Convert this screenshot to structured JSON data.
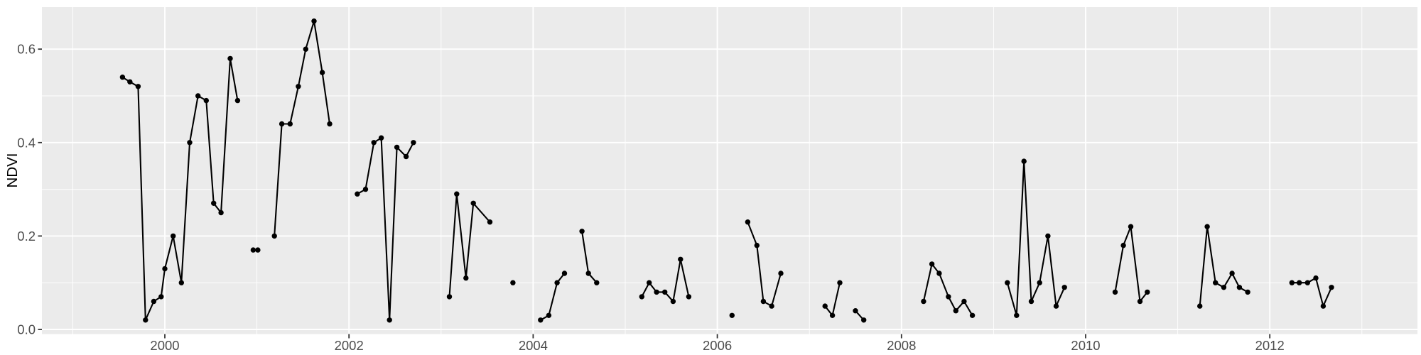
{
  "figure": {
    "description": "NDVI time series line-and-point plot with gaps, ggplot2 grey theme",
    "colors": {
      "figure_background": "#ffffff",
      "panel_background": "#ebebeb",
      "gridline": "#ffffff",
      "series": "#000000",
      "axis_text": "#4d4d4d",
      "axis_title": "#000000",
      "tick_mark": "#333333"
    }
  },
  "chart_data": {
    "type": "line",
    "title": "",
    "xlabel": "",
    "ylabel": "NDVI",
    "legend": "none",
    "grid": {
      "major": true,
      "minor": true
    },
    "x_axis": {
      "tick_labels": [
        "2000",
        "2002",
        "2004",
        "2006",
        "2008",
        "2010",
        "2012"
      ],
      "tick_values": [
        2000,
        2002,
        2004,
        2006,
        2008,
        2010,
        2012
      ],
      "minor_tick_values": [
        1999,
        2001,
        2003,
        2005,
        2007,
        2009,
        2011,
        2013
      ],
      "range": [
        1998.67,
        2013.62
      ]
    },
    "y_axis": {
      "tick_labels": [
        "0.0",
        "0.2",
        "0.4",
        "0.6"
      ],
      "tick_values": [
        0,
        0.2,
        0.4,
        0.6
      ],
      "minor_tick_values": [
        0.1,
        0.3,
        0.5
      ],
      "range": [
        -0.01,
        0.69
      ]
    },
    "series": [
      {
        "name": "NDVI",
        "point_marker": "filled-circle",
        "segments": [
          [
            [
              1999.54,
              0.54
            ],
            [
              1999.62,
              0.53
            ],
            [
              1999.71,
              0.52
            ],
            [
              1999.79,
              0.02
            ],
            [
              1999.88,
              0.06
            ],
            [
              1999.96,
              0.07
            ],
            [
              2000.0,
              0.13
            ],
            [
              2000.09,
              0.2
            ],
            [
              2000.18,
              0.1
            ],
            [
              2000.27,
              0.4
            ],
            [
              2000.36,
              0.5
            ],
            [
              2000.45,
              0.49
            ],
            [
              2000.53,
              0.27
            ],
            [
              2000.61,
              0.25
            ],
            [
              2000.71,
              0.58
            ],
            [
              2000.79,
              0.49
            ]
          ],
          [
            [
              2000.96,
              0.17
            ],
            [
              2001.01,
              0.17
            ]
          ],
          [
            [
              2001.19,
              0.2
            ],
            [
              2001.27,
              0.44
            ],
            [
              2001.36,
              0.44
            ],
            [
              2001.45,
              0.52
            ],
            [
              2001.53,
              0.6
            ],
            [
              2001.62,
              0.66
            ],
            [
              2001.71,
              0.55
            ],
            [
              2001.79,
              0.44
            ]
          ],
          [
            [
              2002.09,
              0.29
            ],
            [
              2002.18,
              0.3
            ],
            [
              2002.27,
              0.4
            ],
            [
              2002.35,
              0.41
            ],
            [
              2002.44,
              0.02
            ],
            [
              2002.52,
              0.39
            ],
            [
              2002.62,
              0.37
            ],
            [
              2002.7,
              0.4
            ]
          ],
          [
            [
              2003.09,
              0.07
            ],
            [
              2003.17,
              0.29
            ],
            [
              2003.27,
              0.11
            ],
            [
              2003.35,
              0.27
            ],
            [
              2003.53,
              0.23
            ]
          ],
          [
            [
              2003.78,
              0.1
            ]
          ],
          [
            [
              2004.08,
              0.02
            ],
            [
              2004.17,
              0.03
            ],
            [
              2004.26,
              0.1
            ],
            [
              2004.34,
              0.12
            ]
          ],
          [
            [
              2004.53,
              0.21
            ],
            [
              2004.6,
              0.12
            ],
            [
              2004.69,
              0.1
            ]
          ],
          [
            [
              2005.18,
              0.07
            ],
            [
              2005.26,
              0.1
            ],
            [
              2005.34,
              0.08
            ],
            [
              2005.43,
              0.08
            ],
            [
              2005.52,
              0.06
            ],
            [
              2005.6,
              0.15
            ],
            [
              2005.69,
              0.07
            ]
          ],
          [
            [
              2006.16,
              0.03
            ]
          ],
          [
            [
              2006.33,
              0.23
            ],
            [
              2006.43,
              0.18
            ],
            [
              2006.5,
              0.06
            ],
            [
              2006.59,
              0.05
            ],
            [
              2006.69,
              0.12
            ]
          ],
          [
            [
              2007.17,
              0.05
            ],
            [
              2007.25,
              0.03
            ],
            [
              2007.33,
              0.1
            ]
          ],
          [
            [
              2007.5,
              0.04
            ],
            [
              2007.59,
              0.02
            ]
          ],
          [
            [
              2008.24,
              0.06
            ],
            [
              2008.33,
              0.14
            ],
            [
              2008.41,
              0.12
            ],
            [
              2008.51,
              0.07
            ],
            [
              2008.59,
              0.04
            ],
            [
              2008.68,
              0.06
            ],
            [
              2008.77,
              0.03
            ]
          ],
          [
            [
              2009.15,
              0.1
            ],
            [
              2009.25,
              0.03
            ],
            [
              2009.33,
              0.36
            ],
            [
              2009.41,
              0.06
            ],
            [
              2009.5,
              0.1
            ],
            [
              2009.59,
              0.2
            ],
            [
              2009.68,
              0.05
            ],
            [
              2009.77,
              0.09
            ]
          ],
          [
            [
              2010.32,
              0.08
            ],
            [
              2010.41,
              0.18
            ],
            [
              2010.49,
              0.22
            ],
            [
              2010.59,
              0.06
            ],
            [
              2010.67,
              0.08
            ]
          ],
          [
            [
              2011.24,
              0.05
            ],
            [
              2011.32,
              0.22
            ],
            [
              2011.41,
              0.1
            ],
            [
              2011.5,
              0.09
            ],
            [
              2011.59,
              0.12
            ],
            [
              2011.67,
              0.09
            ],
            [
              2011.76,
              0.08
            ]
          ],
          [
            [
              2012.24,
              0.1
            ],
            [
              2012.32,
              0.1
            ],
            [
              2012.41,
              0.1
            ],
            [
              2012.5,
              0.11
            ],
            [
              2012.58,
              0.05
            ],
            [
              2012.67,
              0.09
            ]
          ]
        ]
      }
    ]
  }
}
